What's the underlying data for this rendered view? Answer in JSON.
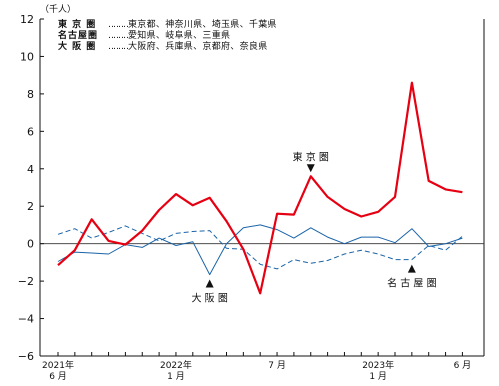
{
  "chart_data": {
    "type": "line",
    "unit_label": "（千人）",
    "ylim": [
      -6,
      12
    ],
    "yticks": [
      -6,
      -4,
      -2,
      0,
      2,
      4,
      6,
      8,
      10,
      12
    ],
    "ytick_labels": [
      "−6",
      "−4",
      "−2",
      "0",
      "2",
      "4",
      "6",
      "8",
      "10",
      "12"
    ],
    "xticks": [
      {
        "index": 0,
        "lines": [
          "2021年",
          "6 月"
        ]
      },
      {
        "index": 7,
        "lines": [
          "2022年",
          "1 月"
        ]
      },
      {
        "index": 13,
        "lines": [
          "7 月"
        ]
      },
      {
        "index": 19,
        "lines": [
          "2023年",
          "1 月"
        ]
      },
      {
        "index": 24,
        "lines": [
          "6 月"
        ]
      }
    ],
    "months": [
      "2021-06",
      "2021-07",
      "2021-08",
      "2021-09",
      "2021-10",
      "2021-11",
      "2021-12",
      "2022-01",
      "2022-02",
      "2022-03",
      "2022-04",
      "2022-05",
      "2022-06",
      "2022-07",
      "2022-08",
      "2022-09",
      "2022-10",
      "2022-11",
      "2022-12",
      "2023-01",
      "2023-02",
      "2023-03",
      "2023-04",
      "2023-05",
      "2023-06"
    ],
    "series": [
      {
        "name": "東京圏",
        "color": "#e60012",
        "style": "solid-thick",
        "values": [
          -1.15,
          -0.35,
          1.3,
          0.15,
          -0.05,
          0.7,
          1.8,
          2.65,
          2.05,
          2.45,
          1.2,
          -0.3,
          -2.65,
          1.6,
          1.55,
          3.6,
          2.5,
          1.85,
          1.45,
          1.7,
          2.5,
          8.6,
          3.35,
          2.9,
          2.75
        ]
      },
      {
        "name": "大阪圏",
        "color": "#1a64a8",
        "style": "solid-thin",
        "values": [
          -0.95,
          -0.45,
          -0.5,
          -0.55,
          -0.05,
          -0.2,
          0.3,
          -0.1,
          0.1,
          -1.65,
          0.0,
          0.85,
          1.0,
          0.75,
          0.3,
          0.85,
          0.35,
          0.0,
          0.35,
          0.35,
          0.05,
          0.8,
          -0.15,
          0.0,
          0.3
        ]
      },
      {
        "name": "名古屋圏",
        "color": "#1a64a8",
        "style": "dashed",
        "values": [
          0.5,
          0.8,
          0.3,
          0.6,
          0.95,
          0.55,
          0.15,
          0.55,
          0.65,
          0.7,
          -0.25,
          -0.3,
          -1.1,
          -1.35,
          -0.85,
          -1.05,
          -0.9,
          -0.55,
          -0.35,
          -0.55,
          -0.85,
          -0.85,
          -0.1,
          -0.35,
          0.4
        ]
      }
    ],
    "annotations": [
      {
        "text": "東 京 圏",
        "marker": "down",
        "index": 15,
        "value": 3.6
      },
      {
        "text": "大 阪 圏",
        "marker": "up",
        "index": 9,
        "value": -1.65
      },
      {
        "text": "名 古 屋 圏",
        "marker": "up",
        "index": 21,
        "value": -0.85
      }
    ],
    "legend": {
      "placement": "top-left",
      "rows": [
        {
          "region": "東 京 圏",
          "dots": "‥‥‥‥‥",
          "prefs": "東京都、神奈川県、埼玉県、千葉県"
        },
        {
          "region": "名古屋圏",
          "dots": "‥‥‥‥‥",
          "prefs": "愛知県、岐阜県、三重県"
        },
        {
          "region": "大 阪 圏",
          "dots": "‥‥‥‥‥",
          "prefs": "大阪府、兵庫県、京都府、奈良県"
        }
      ]
    }
  }
}
